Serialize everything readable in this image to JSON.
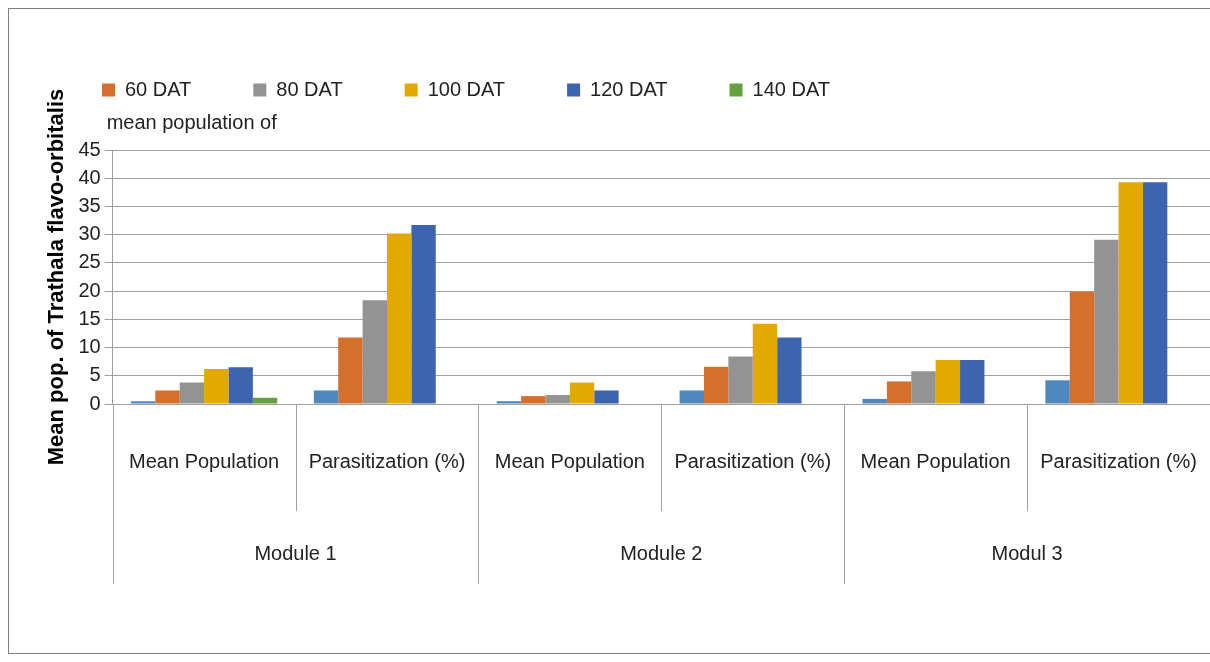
{
  "chart_data": {
    "type": "bar",
    "ylabel": "Mean pop. of Trathala flavo-orbitalis",
    "categories": [
      "Mean Population",
      "Parasitization (%)",
      "Mean Population",
      "Parasitization (%)",
      "Mean Population",
      "Parasitization (%)"
    ],
    "annotations": [
      "mean population of",
      "Module 1",
      "Module 2",
      "Modul 3"
    ],
    "series": [
      {
        "color": "#4f88bd",
        "values": [
          0.5,
          2.4,
          0.5,
          2.4,
          0.9,
          4.2
        ]
      },
      {
        "name": "60 DAT",
        "color": "#d46f2c",
        "values": [
          2.4,
          11.8,
          1.4,
          6.6,
          4.0,
          19.9
        ]
      },
      {
        "name": "80 DAT",
        "color": "#939393",
        "values": [
          3.8,
          18.4,
          1.6,
          8.4,
          5.8,
          29.1
        ]
      },
      {
        "name": "100 DAT",
        "color": "#e2aa00",
        "values": [
          6.2,
          30.2,
          3.8,
          14.2,
          7.8,
          39.3
        ]
      },
      {
        "name": "120 DAT",
        "color": "#3c65ad",
        "values": [
          6.5,
          31.7,
          2.4,
          11.8,
          7.8,
          39.3
        ]
      },
      {
        "name": "140 DAT",
        "color": "#66a03f",
        "values": [
          1.1,
          null,
          null,
          null,
          null,
          null
        ]
      }
    ],
    "ylim": [
      0,
      45
    ],
    "yticks": [
      0,
      5,
      10,
      15,
      20,
      25,
      30,
      35,
      40,
      45
    ],
    "grid": "y",
    "legend": "top"
  }
}
